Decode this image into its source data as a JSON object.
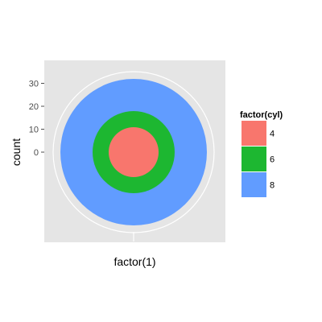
{
  "chart_data": {
    "type": "pie",
    "coord": "polar",
    "xlabel": "factor(1)",
    "ylabel": "count",
    "y_ticks": [
      0,
      10,
      20,
      30
    ],
    "y_range": [
      -38,
      38
    ],
    "x_categories": [],
    "rings": [
      {
        "name": "4",
        "inner": -38,
        "outer": -11,
        "color": "#F8766D"
      },
      {
        "name": "6",
        "inner": -11,
        "outer": 18,
        "color": "#1DB731"
      },
      {
        "name": "8",
        "inner": 18,
        "outer": 32,
        "color": "#619CFF"
      }
    ],
    "legend": {
      "title": "factor(cyl)",
      "placement": "right",
      "items": [
        {
          "label": "4",
          "color": "#F8766D"
        },
        {
          "label": "6",
          "color": "#1DB731"
        },
        {
          "label": "8",
          "color": "#619CFF"
        }
      ]
    },
    "panel_background": "#E5E5E5",
    "grid_color": "#FFFFFF"
  }
}
